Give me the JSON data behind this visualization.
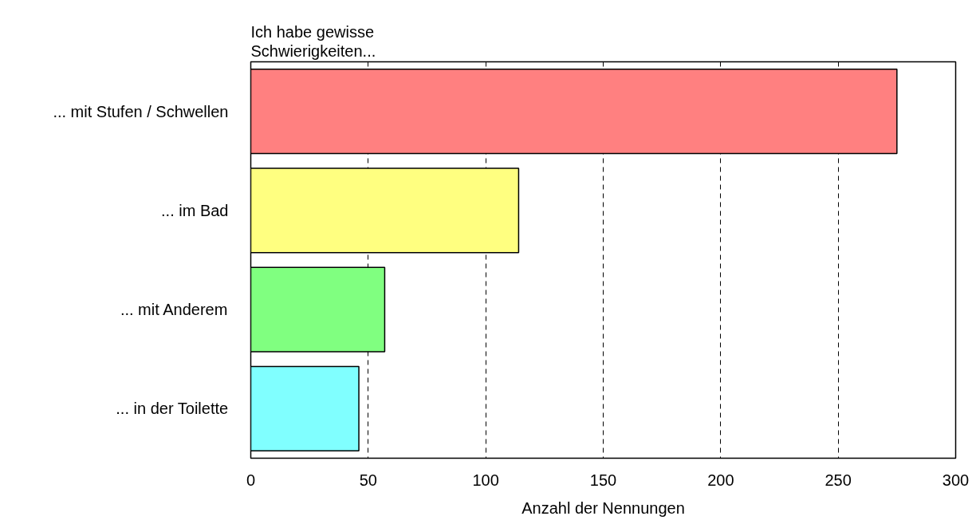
{
  "chart_data": {
    "type": "bar",
    "orientation": "horizontal",
    "title": "Ich habe gewisse\nSchwierigkeiten...",
    "xlabel": "Anzahl der Nennungen",
    "categories": [
      "... mit Stufen / Schwellen",
      "... im Bad",
      "... mit Anderem",
      "... in der Toilette"
    ],
    "values": [
      275,
      114,
      57,
      46
    ],
    "colors": [
      "#ff8080",
      "#ffff80",
      "#80ff80",
      "#80ffff"
    ],
    "xlim": [
      0,
      300
    ],
    "xticks": [
      0,
      50,
      100,
      150,
      200,
      250,
      300
    ],
    "grid": "x"
  }
}
